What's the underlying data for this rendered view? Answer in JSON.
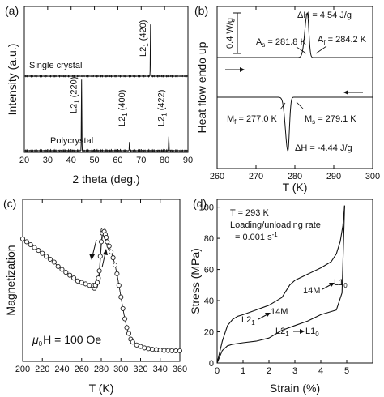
{
  "chart_data": [
    {
      "panel": "(a)",
      "type": "line",
      "xlabel": "2 theta (deg.)",
      "ylabel": "Intensity (a.u.)",
      "xlim": [
        20,
        90
      ],
      "xticks": [
        20,
        30,
        40,
        50,
        60,
        70,
        80,
        90
      ],
      "series": [
        {
          "name": "Single crystal",
          "peaks": [
            {
              "x": 74.0,
              "height": 1.0
            }
          ]
        },
        {
          "name": "Polycrystal",
          "peaks": [
            {
              "x": 44.5,
              "height": 1.0
            },
            {
              "x": 65.0,
              "height": 0.13
            },
            {
              "x": 81.8,
              "height": 0.2
            }
          ]
        }
      ],
      "peak_labels": [
        {
          "x": 74.0,
          "text": "L2",
          "sub": "1",
          "hkl": " (420)"
        },
        {
          "x": 44.5,
          "text": "L2",
          "sub": "1",
          "hkl": " (220)"
        },
        {
          "x": 65.0,
          "text": "L2",
          "sub": "1",
          "hkl": " (400)"
        },
        {
          "x": 81.8,
          "text": "L2",
          "sub": "1",
          "hkl": " (422)"
        }
      ]
    },
    {
      "panel": "(b)",
      "type": "line",
      "xlabel": "T (K)",
      "ylabel": "Heat flow endo up",
      "xlim": [
        260,
        300
      ],
      "xticks": [
        260,
        270,
        280,
        290,
        300
      ],
      "scale_bar": "0.4 W/g",
      "heating": {
        "peak_T": 283.2,
        "As": "A",
        "As_sub": "s",
        "As_val": " = 281.8 K",
        "Af": "A",
        "Af_sub": "f",
        "Af_val": " = 284.2 K",
        "dH": "ΔH = 4.54 J/g"
      },
      "cooling": {
        "peak_T": 278.2,
        "Ms": "M",
        "Ms_sub": "s",
        "Ms_val": " = 279.1 K",
        "Mf": "M",
        "Mf_sub": "f",
        "Mf_val": " = 277.0 K",
        "dH": "ΔH = -4.44 J/g"
      }
    },
    {
      "panel": "(c)",
      "type": "scatter",
      "xlabel": "T (K)",
      "ylabel": "Magnetization",
      "xlim": [
        200,
        360
      ],
      "xticks": [
        200,
        220,
        240,
        260,
        280,
        300,
        320,
        340,
        360
      ],
      "field_label_mu": "μ",
      "field_label_sub": "0",
      "field_label_rest": "H = 100 Oe",
      "x": [
        200,
        204,
        208,
        212,
        216,
        220,
        224,
        228,
        232,
        236,
        240,
        244,
        248,
        252,
        256,
        260,
        264,
        268,
        272,
        274,
        276,
        277,
        278,
        279,
        280,
        281,
        282,
        283,
        284,
        285,
        286,
        288,
        290,
        292,
        294,
        296,
        298,
        300,
        302,
        304,
        306,
        308,
        310,
        312,
        316,
        320,
        324,
        328,
        332,
        336,
        340,
        344,
        348,
        352,
        356,
        360
      ],
      "y": [
        0.82,
        0.8,
        0.78,
        0.76,
        0.74,
        0.72,
        0.7,
        0.68,
        0.66,
        0.63,
        0.61,
        0.59,
        0.57,
        0.55,
        0.53,
        0.52,
        0.51,
        0.5,
        0.5,
        0.5,
        0.52,
        0.55,
        0.6,
        0.7,
        0.8,
        0.86,
        0.88,
        0.87,
        0.85,
        0.83,
        0.8,
        0.77,
        0.73,
        0.69,
        0.64,
        0.58,
        0.5,
        0.42,
        0.34,
        0.27,
        0.21,
        0.17,
        0.13,
        0.11,
        0.09,
        0.08,
        0.07,
        0.065,
        0.06,
        0.058,
        0.055,
        0.053,
        0.052,
        0.051,
        0.05,
        0.05
      ]
    },
    {
      "panel": "(d)",
      "type": "line",
      "xlabel": "Strain (%)",
      "ylabel": "Stress (MPa)",
      "xlim": [
        0,
        6
      ],
      "ylim": [
        0,
        105
      ],
      "xticks": [
        0,
        1,
        2,
        3,
        4,
        5
      ],
      "yticks": [
        0,
        20,
        40,
        60,
        80,
        100
      ],
      "info": [
        "T = 293 K",
        "Loading/unloading rate",
        "= 0.001 s"
      ],
      "info_sup": "-1",
      "labels": [
        {
          "left": "L2",
          "left_sub": "1",
          "right": "14M",
          "right_sub": ""
        },
        {
          "left": "14M",
          "left_sub": "",
          "right": "L1",
          "right_sub": "0"
        },
        {
          "left": "L2",
          "left_sub": "1",
          "right": "L1",
          "right_sub": "0"
        }
      ],
      "loading": {
        "x": [
          0,
          0.2,
          0.4,
          0.6,
          0.8,
          1.0,
          1.5,
          2.0,
          2.5,
          2.8,
          3.0,
          3.5,
          4.0,
          4.4,
          4.6,
          4.75,
          4.85,
          4.92
        ],
        "y": [
          0,
          14,
          24,
          28,
          30,
          31,
          34,
          37,
          42,
          50,
          53,
          57,
          61,
          65,
          70,
          78,
          88,
          101
        ]
      },
      "unloading": {
        "x": [
          4.92,
          4.88,
          4.82,
          4.6,
          4.0,
          3.5,
          3.0,
          2.5,
          2.2,
          2.0,
          1.5,
          1.0,
          0.6,
          0.4,
          0.2,
          0.05,
          0
        ],
        "y": [
          101,
          80,
          45,
          34,
          31,
          27,
          24,
          21,
          18,
          16,
          14,
          13,
          12,
          11,
          8,
          2,
          0
        ]
      }
    }
  ],
  "panel_labels": [
    "(a)",
    "(b)",
    "(c)",
    "(d)"
  ]
}
